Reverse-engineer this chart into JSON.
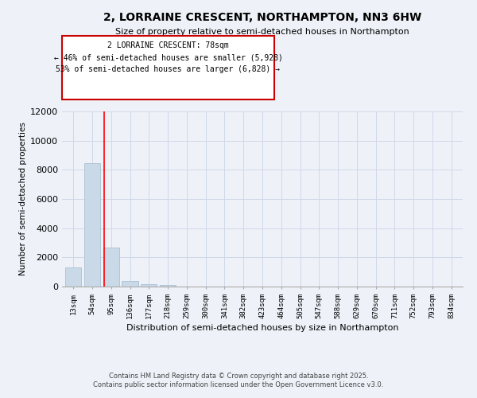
{
  "title_line1": "2, LORRAINE CRESCENT, NORTHAMPTON, NN3 6HW",
  "title_line2": "Size of property relative to semi-detached houses in Northampton",
  "xlabel": "Distribution of semi-detached houses by size in Northampton",
  "ylabel": "Number of semi-detached properties",
  "categories": [
    "13sqm",
    "54sqm",
    "95sqm",
    "136sqm",
    "177sqm",
    "218sqm",
    "259sqm",
    "300sqm",
    "341sqm",
    "382sqm",
    "423sqm",
    "464sqm",
    "505sqm",
    "547sqm",
    "588sqm",
    "629sqm",
    "670sqm",
    "711sqm",
    "752sqm",
    "793sqm",
    "834sqm"
  ],
  "values": [
    1300,
    8450,
    2700,
    370,
    155,
    100,
    0,
    0,
    0,
    0,
    0,
    0,
    0,
    0,
    0,
    0,
    0,
    0,
    0,
    0,
    0
  ],
  "ylim": [
    0,
    12000
  ],
  "yticks": [
    0,
    2000,
    4000,
    6000,
    8000,
    10000,
    12000
  ],
  "bar_color": "#c9d9e8",
  "bar_edge_color": "#a0b8cc",
  "grid_color": "#d0d8e8",
  "bg_color": "#eef2f8",
  "property_line_x": 1.62,
  "property_size": "78sqm",
  "property_name": "2 LORRAINE CRESCENT",
  "pct_smaller": 46,
  "num_smaller": 5928,
  "pct_larger": 53,
  "num_larger": 6828,
  "annotation_box_color": "#cc0000",
  "footer_line1": "Contains HM Land Registry data © Crown copyright and database right 2025.",
  "footer_line2": "Contains public sector information licensed under the Open Government Licence v3.0."
}
